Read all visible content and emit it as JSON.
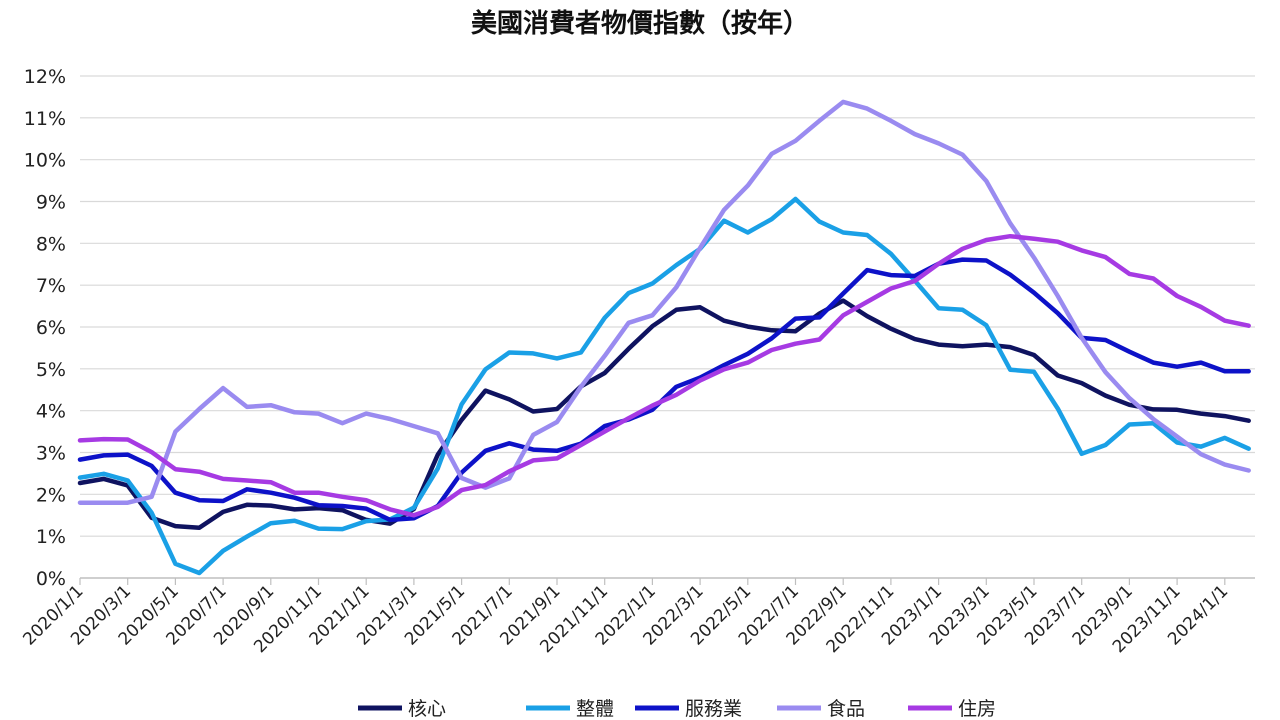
{
  "chart_data": {
    "type": "line",
    "title": "美國消費者物價指數（按年）",
    "xlabel": "",
    "ylabel": "",
    "ylim": [
      0,
      12
    ],
    "yticks": [
      "0%",
      "1%",
      "2%",
      "3%",
      "4%",
      "5%",
      "6%",
      "7%",
      "8%",
      "9%",
      "10%",
      "11%",
      "12%"
    ],
    "xtick_labels": [
      "2020/1/1",
      "2020/3/1",
      "2020/5/1",
      "2020/7/1",
      "2020/9/1",
      "2020/11/1",
      "2021/1/1",
      "2021/3/1",
      "2021/5/1",
      "2021/7/1",
      "2021/9/1",
      "2021/11/1",
      "2022/1/1",
      "2022/3/1",
      "2022/5/1",
      "2022/7/1",
      "2022/9/1",
      "2022/11/1",
      "2023/1/1",
      "2023/3/1",
      "2023/5/1",
      "2023/7/1",
      "2023/9/1",
      "2023/11/1",
      "2024/1/1"
    ],
    "x": [
      "2020/1",
      "2020/2",
      "2020/3",
      "2020/4",
      "2020/5",
      "2020/6",
      "2020/7",
      "2020/8",
      "2020/9",
      "2020/10",
      "2020/11",
      "2020/12",
      "2021/1",
      "2021/2",
      "2021/3",
      "2021/4",
      "2021/5",
      "2021/6",
      "2021/7",
      "2021/8",
      "2021/9",
      "2021/10",
      "2021/11",
      "2021/12",
      "2022/1",
      "2022/2",
      "2022/3",
      "2022/4",
      "2022/5",
      "2022/6",
      "2022/7",
      "2022/8",
      "2022/9",
      "2022/10",
      "2022/11",
      "2022/12",
      "2023/1",
      "2023/2",
      "2023/3",
      "2023/4",
      "2023/5",
      "2023/6",
      "2023/7",
      "2023/8",
      "2023/9",
      "2023/10",
      "2023/11",
      "2023/12",
      "2024/1",
      "2024/2"
    ],
    "grid": true,
    "legend_position": "bottom",
    "series": [
      {
        "name": "核心",
        "color": "#0f1360",
        "values": [
          2.27,
          2.37,
          2.21,
          1.44,
          1.24,
          1.2,
          1.58,
          1.75,
          1.73,
          1.64,
          1.67,
          1.62,
          1.39,
          1.3,
          1.65,
          2.95,
          3.78,
          4.48,
          4.27,
          3.98,
          4.04,
          4.58,
          4.9,
          5.48,
          6.02,
          6.41,
          6.47,
          6.15,
          6.01,
          5.92,
          5.9,
          6.32,
          6.63,
          6.26,
          5.96,
          5.71,
          5.58,
          5.54,
          5.58,
          5.52,
          5.33,
          4.84,
          4.66,
          4.36,
          4.14,
          4.03,
          4.02,
          3.93,
          3.87,
          3.76
        ]
      },
      {
        "name": "整體",
        "color": "#1aa0e6",
        "values": [
          2.4,
          2.49,
          2.33,
          1.56,
          0.34,
          0.12,
          0.65,
          0.99,
          1.31,
          1.37,
          1.18,
          1.17,
          1.36,
          1.4,
          1.68,
          2.62,
          4.15,
          4.99,
          5.39,
          5.37,
          5.25,
          5.39,
          6.22,
          6.81,
          7.04,
          7.48,
          7.87,
          8.54,
          8.26,
          8.58,
          9.06,
          8.52,
          8.26,
          8.2,
          7.75,
          7.11,
          6.45,
          6.41,
          6.04,
          4.98,
          4.93,
          4.05,
          2.97,
          3.18,
          3.67,
          3.7,
          3.24,
          3.14,
          3.35,
          3.09
        ]
      },
      {
        "name": "服務業",
        "color": "#0d12c8",
        "values": [
          2.83,
          2.93,
          2.95,
          2.68,
          2.04,
          1.86,
          1.84,
          2.12,
          2.04,
          1.92,
          1.74,
          1.72,
          1.66,
          1.39,
          1.43,
          1.72,
          2.52,
          3.04,
          3.22,
          3.07,
          3.04,
          3.21,
          3.63,
          3.79,
          4.02,
          4.57,
          4.79,
          5.09,
          5.36,
          5.73,
          6.2,
          6.23,
          6.8,
          7.36,
          7.24,
          7.22,
          7.51,
          7.61,
          7.59,
          7.25,
          6.82,
          6.33,
          5.74,
          5.69,
          5.41,
          5.15,
          5.05,
          5.15,
          4.94,
          4.94
        ]
      },
      {
        "name": "食品",
        "color": "#9a8bf0",
        "values": [
          1.8,
          1.8,
          1.8,
          1.94,
          3.5,
          4.04,
          4.54,
          4.09,
          4.13,
          3.96,
          3.93,
          3.7,
          3.93,
          3.8,
          3.63,
          3.46,
          2.39,
          2.16,
          2.38,
          3.42,
          3.73,
          4.57,
          5.31,
          6.1,
          6.28,
          6.95,
          7.89,
          8.8,
          9.38,
          10.14,
          10.45,
          10.93,
          11.38,
          11.22,
          10.93,
          10.61,
          10.39,
          10.12,
          9.49,
          8.48,
          7.66,
          6.74,
          5.74,
          4.92,
          4.3,
          3.8,
          3.38,
          2.96,
          2.71,
          2.57
        ]
      },
      {
        "name": "住房",
        "color": "#a63ae3",
        "values": [
          3.29,
          3.32,
          3.31,
          3.01,
          2.6,
          2.54,
          2.37,
          2.33,
          2.29,
          2.04,
          2.04,
          1.94,
          1.86,
          1.64,
          1.5,
          1.7,
          2.1,
          2.22,
          2.55,
          2.81,
          2.86,
          3.18,
          3.5,
          3.82,
          4.12,
          4.38,
          4.72,
          4.99,
          5.15,
          5.45,
          5.6,
          5.7,
          6.28,
          6.6,
          6.92,
          7.1,
          7.51,
          7.87,
          8.08,
          8.17,
          8.11,
          8.04,
          7.83,
          7.67,
          7.27,
          7.16,
          6.74,
          6.48,
          6.15,
          6.03
        ]
      }
    ]
  }
}
